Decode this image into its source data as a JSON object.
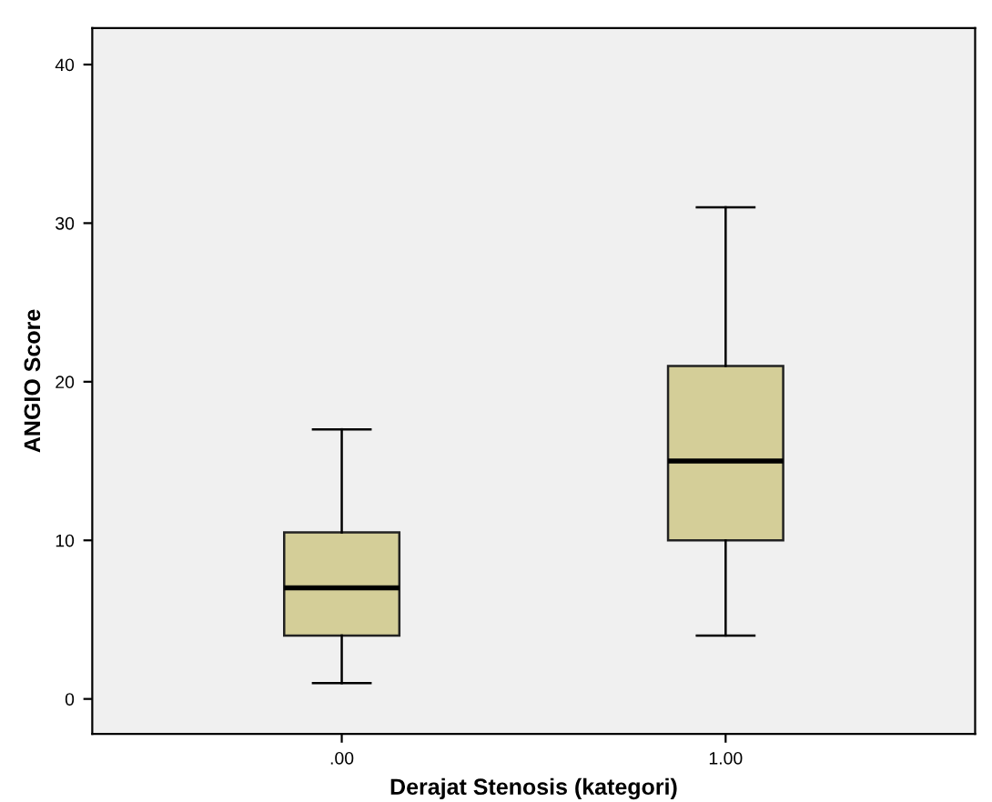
{
  "chart_data": {
    "type": "box",
    "xlabel": "Derajat Stenosis (kategori)",
    "ylabel": "ANGIO Score",
    "categories": [
      ".00",
      "1.00"
    ],
    "color": "#d4ce98",
    "boxes": [
      {
        "low": 1,
        "q1": 4,
        "median": 7,
        "q3": 10.5,
        "high": 17
      },
      {
        "low": 4,
        "q1": 10,
        "median": 15,
        "q3": 21,
        "high": 31
      }
    ],
    "ylim": [
      -2.2,
      42.3
    ],
    "yticks": [
      0,
      10,
      20,
      30,
      40
    ],
    "grid": false
  }
}
